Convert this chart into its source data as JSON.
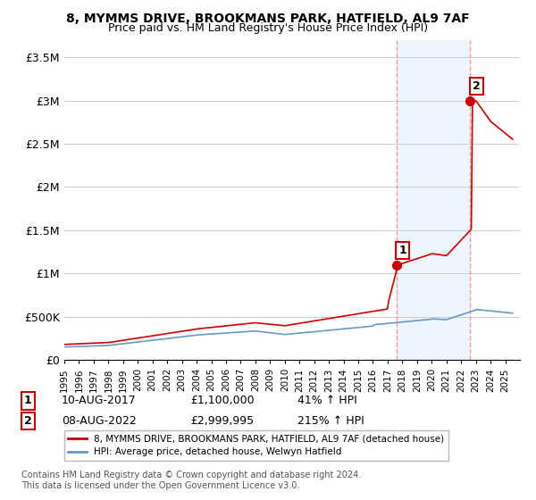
{
  "title": "8, MYMMS DRIVE, BROOKMANS PARK, HATFIELD, AL9 7AF",
  "subtitle": "Price paid vs. HM Land Registry's House Price Index (HPI)",
  "ylabel_ticks": [
    "£0",
    "£500K",
    "£1M",
    "£1.5M",
    "£2M",
    "£2.5M",
    "£3M",
    "£3.5M"
  ],
  "ytick_values": [
    0,
    500000,
    1000000,
    1500000,
    2000000,
    2500000,
    3000000,
    3500000
  ],
  "ylim": [
    0,
    3700000
  ],
  "xlim_start": 1995,
  "xlim_end": 2026,
  "sale1_x": 2017.61,
  "sale1_price": 1100000,
  "sale1_label": "1",
  "sale1_date": "10-AUG-2017",
  "sale1_pct": "41% ↑ HPI",
  "sale1_price_str": "£1,100,000",
  "sale2_x": 2022.61,
  "sale2_price": 2999995,
  "sale2_label": "2",
  "sale2_date": "08-AUG-2022",
  "sale2_pct": "215% ↑ HPI",
  "sale2_price_str": "£2,999,995",
  "legend_line1": "8, MYMMS DRIVE, BROOKMANS PARK, HATFIELD, AL9 7AF (detached house)",
  "legend_line2": "HPI: Average price, detached house, Welwyn Hatfield",
  "footer": "Contains HM Land Registry data © Crown copyright and database right 2024.\nThis data is licensed under the Open Government Licence v3.0.",
  "line_color_red": "#cc0000",
  "line_color_blue": "#6699cc",
  "background_color": "#ffffff",
  "grid_color": "#cccccc",
  "dashed_color": "#ff9999",
  "highlight_bg": "#ddeeff"
}
